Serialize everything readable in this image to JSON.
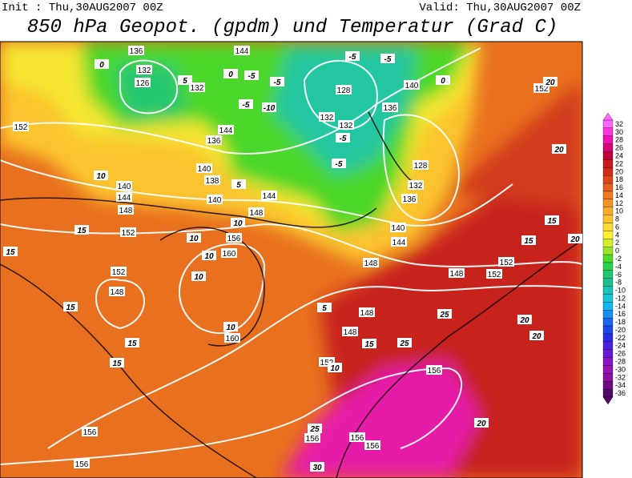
{
  "header": {
    "init": "Init : Thu,30AUG2007 00Z",
    "valid": "Valid: Thu,30AUG2007 00Z",
    "title": "850 hPa Geopot. (gpdm) und Temperatur (Grad C)"
  },
  "colorbar": {
    "levels": [
      32,
      30,
      28,
      26,
      24,
      22,
      20,
      18,
      16,
      14,
      12,
      10,
      8,
      6,
      4,
      2,
      0,
      -2,
      -4,
      -6,
      -8,
      -10,
      -12,
      -14,
      -16,
      -18,
      -20,
      -22,
      -24,
      -26,
      -28,
      -30,
      -32,
      -34,
      -36
    ],
    "colors": [
      "#ff66ff",
      "#ff33dd",
      "#f010b0",
      "#d80078",
      "#c0003c",
      "#c81a1a",
      "#d42c1a",
      "#de461a",
      "#e6601e",
      "#ee7a22",
      "#f49426",
      "#f8ac2a",
      "#fbc42e",
      "#fddc32",
      "#fff034",
      "#d6ee2a",
      "#9ae62a",
      "#4edc2a",
      "#2cd24c",
      "#22c66e",
      "#1cbe90",
      "#18c2b6",
      "#16c6d6",
      "#14b6ee",
      "#188ef0",
      "#1a68f0",
      "#1c46ee",
      "#2a2ae8",
      "#4a20e0",
      "#6a18d4",
      "#8a14c4",
      "#9a12b4",
      "#8a10a0",
      "#6e0c88",
      "#520a6a"
    ]
  },
  "contour_labels": {
    "geopotential": [
      136,
      132,
      126,
      132,
      136,
      140,
      138,
      140,
      144,
      148,
      152,
      156,
      160,
      152,
      148,
      160,
      152,
      148,
      148,
      156,
      156,
      156,
      156,
      156,
      156,
      128,
      132,
      132,
      136,
      140,
      128,
      132,
      136,
      140,
      144,
      148,
      152,
      152,
      148,
      152,
      152,
      140,
      144,
      148,
      144,
      144
    ],
    "temperature": [
      0,
      0,
      0,
      -5,
      -5,
      -5,
      -5,
      -5,
      -10,
      -5,
      -5,
      5,
      5,
      10,
      10,
      10,
      10,
      10,
      10,
      10,
      15,
      15,
      15,
      15,
      15,
      15,
      15,
      15,
      20,
      20,
      20,
      20,
      20,
      20,
      25,
      25,
      25,
      30,
      5
    ]
  }
}
